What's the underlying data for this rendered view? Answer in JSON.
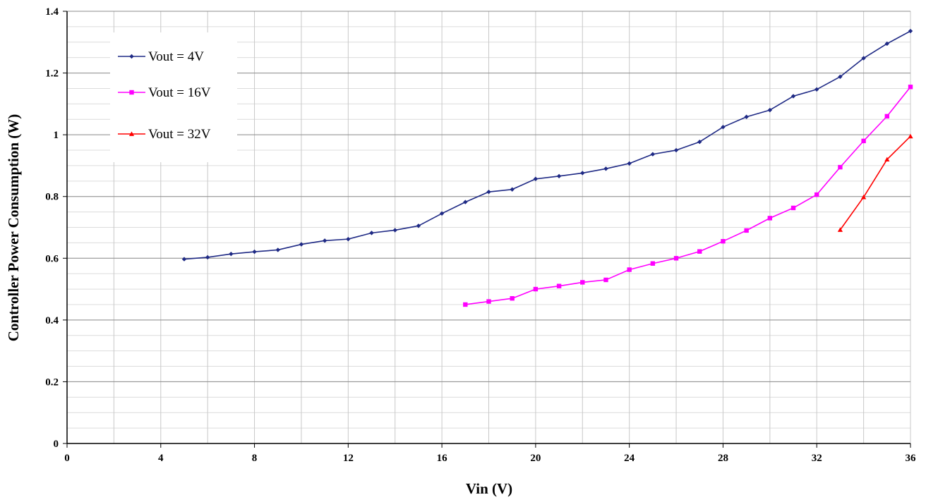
{
  "chart_data": {
    "type": "line",
    "xlabel": "Vin (V)",
    "ylabel": "Controller Power Consumption (W)",
    "xlim": [
      0,
      36
    ],
    "ylim": [
      0,
      1.4
    ],
    "x_ticks": [
      0,
      4,
      8,
      12,
      16,
      20,
      24,
      28,
      32,
      36
    ],
    "y_ticks": [
      0,
      0.2,
      0.4,
      0.6,
      0.8,
      1,
      1.2,
      1.4
    ],
    "y_tick_labels": [
      "0",
      "0.2",
      "0.4",
      "0.6",
      "0.8",
      "1",
      "1.2",
      "1.4"
    ],
    "grid": true,
    "legend_position": "top-left",
    "series": [
      {
        "name": "Vout = 4V",
        "color": "#1f2a85",
        "marker": "diamond",
        "x": [
          5,
          6,
          7,
          8,
          9,
          10,
          11,
          12,
          13,
          14,
          15,
          16,
          17,
          18,
          19,
          20,
          21,
          22,
          23,
          24,
          25,
          26,
          27,
          28,
          29,
          30,
          31,
          32,
          33,
          34,
          35,
          36
        ],
        "values": [
          0.597,
          0.603,
          0.614,
          0.621,
          0.627,
          0.645,
          0.657,
          0.662,
          0.682,
          0.691,
          0.705,
          0.745,
          0.782,
          0.815,
          0.823,
          0.857,
          0.866,
          0.876,
          0.89,
          0.907,
          0.937,
          0.95,
          0.977,
          1.025,
          1.058,
          1.08,
          1.125,
          1.147,
          1.188,
          1.248,
          1.295,
          1.336
        ]
      },
      {
        "name": "Vout = 16V",
        "color": "#ff00ff",
        "marker": "square",
        "x": [
          17,
          18,
          19,
          20,
          21,
          22,
          23,
          24,
          25,
          26,
          27,
          28,
          29,
          30,
          31,
          32,
          33,
          34,
          35,
          36
        ],
        "values": [
          0.45,
          0.46,
          0.47,
          0.5,
          0.51,
          0.522,
          0.53,
          0.563,
          0.583,
          0.6,
          0.622,
          0.655,
          0.69,
          0.73,
          0.763,
          0.806,
          0.895,
          0.98,
          1.06,
          1.155
        ]
      },
      {
        "name": "Vout = 32V",
        "color": "#ff0000",
        "marker": "triangle",
        "x": [
          33,
          34,
          35,
          36
        ],
        "values": [
          0.692,
          0.798,
          0.92,
          0.995
        ]
      }
    ]
  }
}
